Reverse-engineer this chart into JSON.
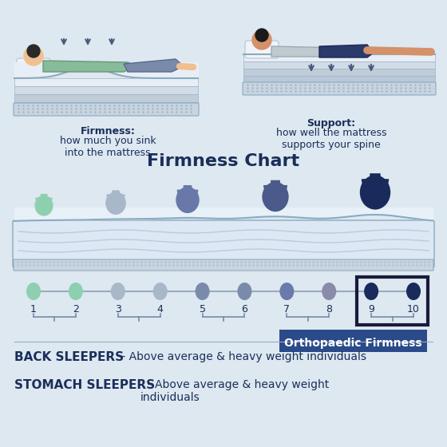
{
  "bg_color": "#dde8f0",
  "title": "Firmness Chart",
  "title_color": "#1a2e5a",
  "firmness_label": "Firmness:",
  "firmness_text": " how much you sink\ninto the mattress",
  "support_label": "Support:",
  "support_text": " how well the mattress\nsupports your spine",
  "scale_numbers": [
    1,
    2,
    3,
    4,
    5,
    6,
    7,
    8,
    9,
    10
  ],
  "dot_colors": [
    "#8ecfb0",
    "#8ecfb0",
    "#a8b8c8",
    "#a8b8c8",
    "#7a8aaa",
    "#7a8aaa",
    "#6a7aaa",
    "#8a8aaa",
    "#1a2a5a",
    "#1a2a5a"
  ],
  "ortho_label": "Orthopaedic Firmness",
  "ortho_bg": "#2a4a8a",
  "back_sleepers_bold": "BACK SLEEPERS",
  "back_sleepers_text": " - Above average & heavy weight individuals",
  "stomach_sleepers_bold": "STOMACH SLEEPERS",
  "stomach_sleepers_text": "  - Above average & heavy weight\nindividuals",
  "text_color": "#1a2e5a",
  "mattress_top_color": "#e8eef5",
  "mattress_mid_color": "#c8d4e0",
  "mattress_bot_color": "#b0bece"
}
